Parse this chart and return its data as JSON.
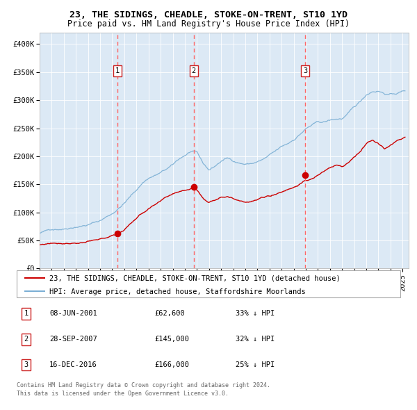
{
  "title": "23, THE SIDINGS, CHEADLE, STOKE-ON-TRENT, ST10 1YD",
  "subtitle": "Price paid vs. HM Land Registry's House Price Index (HPI)",
  "legend_label_red": "23, THE SIDINGS, CHEADLE, STOKE-ON-TRENT, ST10 1YD (detached house)",
  "legend_label_blue": "HPI: Average price, detached house, Staffordshire Moorlands",
  "transactions": [
    {
      "num": 1,
      "date": "08-JUN-2001",
      "date_x": 2001.44,
      "price": 62600,
      "pct": "33%",
      "dir": "↓"
    },
    {
      "num": 2,
      "date": "28-SEP-2007",
      "date_x": 2007.74,
      "price": 145000,
      "pct": "32%",
      "dir": "↓"
    },
    {
      "num": 3,
      "date": "16-DEC-2016",
      "date_x": 2016.96,
      "price": 166000,
      "pct": "25%",
      "dir": "↓"
    }
  ],
  "footer_line1": "Contains HM Land Registry data © Crown copyright and database right 2024.",
  "footer_line2": "This data is licensed under the Open Government Licence v3.0.",
  "ylim": [
    0,
    420000
  ],
  "xlim_start": 1995.0,
  "xlim_end": 2025.5,
  "background_color": "#dce9f5",
  "grid_color": "#ffffff",
  "red_color": "#cc0000",
  "blue_color": "#7bafd4",
  "vline_color": "#ff6666",
  "box_edge_color": "#cc2222",
  "spine_color": "#aaaaaa",
  "footer_color": "#666666",
  "title_fontsize": 9.5,
  "subtitle_fontsize": 8.5,
  "tick_fontsize": 7.5,
  "legend_fontsize": 7.5,
  "table_fontsize": 7.5,
  "footer_fontsize": 6.0,
  "blue_anchors_t": [
    1995.0,
    1995.5,
    1996.0,
    1997.0,
    1997.5,
    1998.0,
    1999.0,
    2000.0,
    2001.0,
    2002.0,
    2003.0,
    2003.5,
    2004.0,
    2005.0,
    2006.0,
    2006.5,
    2007.0,
    2007.5,
    2008.0,
    2008.5,
    2009.0,
    2009.5,
    2010.0,
    2010.5,
    2011.0,
    2011.5,
    2012.0,
    2012.5,
    2013.0,
    2013.5,
    2014.0,
    2014.5,
    2015.0,
    2015.5,
    2016.0,
    2016.5,
    2017.0,
    2017.5,
    2018.0,
    2018.5,
    2019.0,
    2019.5,
    2020.0,
    2020.5,
    2021.0,
    2021.5,
    2022.0,
    2022.5,
    2023.0,
    2023.5,
    2024.0,
    2024.5,
    2025.2
  ],
  "blue_anchors_v": [
    63000,
    66000,
    70000,
    73000,
    76000,
    79000,
    83000,
    90000,
    103000,
    122000,
    145000,
    158000,
    167000,
    176000,
    188000,
    198000,
    205000,
    212000,
    208000,
    188000,
    176000,
    183000,
    192000,
    197000,
    193000,
    190000,
    188000,
    189000,
    192000,
    196000,
    202000,
    208000,
    215000,
    220000,
    228000,
    238000,
    248000,
    254000,
    258000,
    258000,
    261000,
    263000,
    264000,
    272000,
    282000,
    292000,
    305000,
    312000,
    314000,
    310000,
    308000,
    310000,
    315000
  ],
  "red_anchors_t": [
    1995.0,
    1995.5,
    1996.0,
    1997.0,
    1998.0,
    1999.0,
    2000.0,
    2000.5,
    2001.0,
    2001.44,
    2002.0,
    2003.0,
    2004.0,
    2005.0,
    2006.0,
    2007.0,
    2007.74,
    2008.0,
    2008.5,
    2009.0,
    2009.5,
    2010.0,
    2010.5,
    2011.0,
    2011.5,
    2012.0,
    2012.5,
    2013.0,
    2013.5,
    2014.0,
    2014.5,
    2015.0,
    2015.5,
    2016.0,
    2016.5,
    2016.96,
    2017.5,
    2018.0,
    2018.5,
    2019.0,
    2019.5,
    2020.0,
    2020.5,
    2021.0,
    2021.5,
    2022.0,
    2022.5,
    2023.0,
    2023.5,
    2024.0,
    2024.5,
    2025.2
  ],
  "red_anchors_v": [
    42000,
    44000,
    46000,
    48000,
    50000,
    52000,
    54000,
    57000,
    60000,
    62600,
    72000,
    93000,
    110000,
    120000,
    132000,
    141000,
    145000,
    142000,
    128000,
    120000,
    125000,
    132000,
    135000,
    130000,
    128000,
    127000,
    128000,
    131000,
    134000,
    137000,
    141000,
    145000,
    150000,
    155000,
    161000,
    166000,
    168000,
    175000,
    182000,
    187000,
    192000,
    190000,
    197000,
    205000,
    215000,
    228000,
    238000,
    230000,
    222000,
    228000,
    235000,
    240000
  ]
}
